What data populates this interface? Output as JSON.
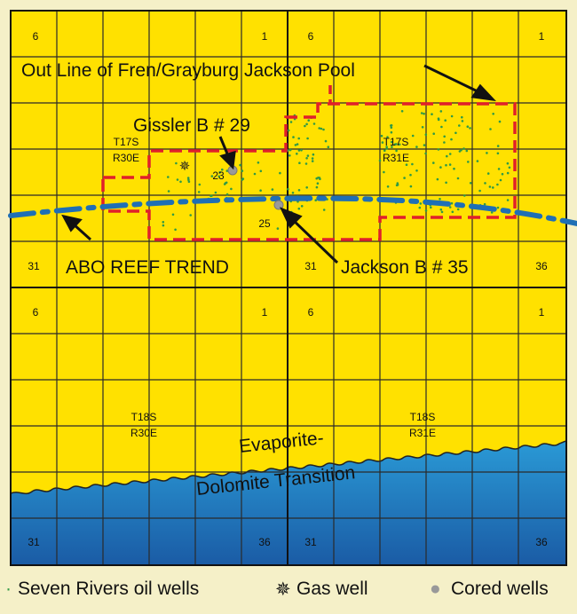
{
  "map": {
    "colors": {
      "land": "#ffe100",
      "water": "#1f86c8",
      "water_deep": "#1a60a8",
      "grid": "#2a2a2a",
      "pool_outline": "#e0202a",
      "reef_trend": "#1f6fb5",
      "oil_well": "#2f9a45",
      "cored_well": "#999999"
    },
    "section_labels": {
      "tl": "6",
      "t1a": "1",
      "t6b": "6",
      "t1b": "1",
      "b31a": "31",
      "b31b": "31",
      "b36b": "36",
      "m6a": "6",
      "m1a": "1",
      "m6b": "6",
      "m1b": "1",
      "lb31a": "31",
      "lb36a": "36",
      "lb31b": "31",
      "lb36b": "36",
      "s23": "23",
      "s25": "25"
    },
    "townships": {
      "t17s_r30e_1": "T17S",
      "t17s_r30e_2": "R30E",
      "t17s_r31e_1": "T17S",
      "t17s_r31e_2": "R31E",
      "t18s_r30e_1": "T18S",
      "t18s_r30e_2": "R30E",
      "t18s_r31e_1": "T18S",
      "t18s_r31e_2": "R31E"
    },
    "annotations": {
      "pool_outline": "Out Line of Fren/Grayburg Jackson Pool",
      "gissler": "Gissler B # 29",
      "jackson": "Jackson B # 35",
      "abo": "ABO REEF TREND",
      "evap1": "Evaporite-",
      "evap2": "Dolomite Transition"
    }
  },
  "legend": {
    "oil_wells": "Seven Rivers oil wells",
    "gas_well": "Gas well",
    "cored_wells": "Cored wells"
  }
}
